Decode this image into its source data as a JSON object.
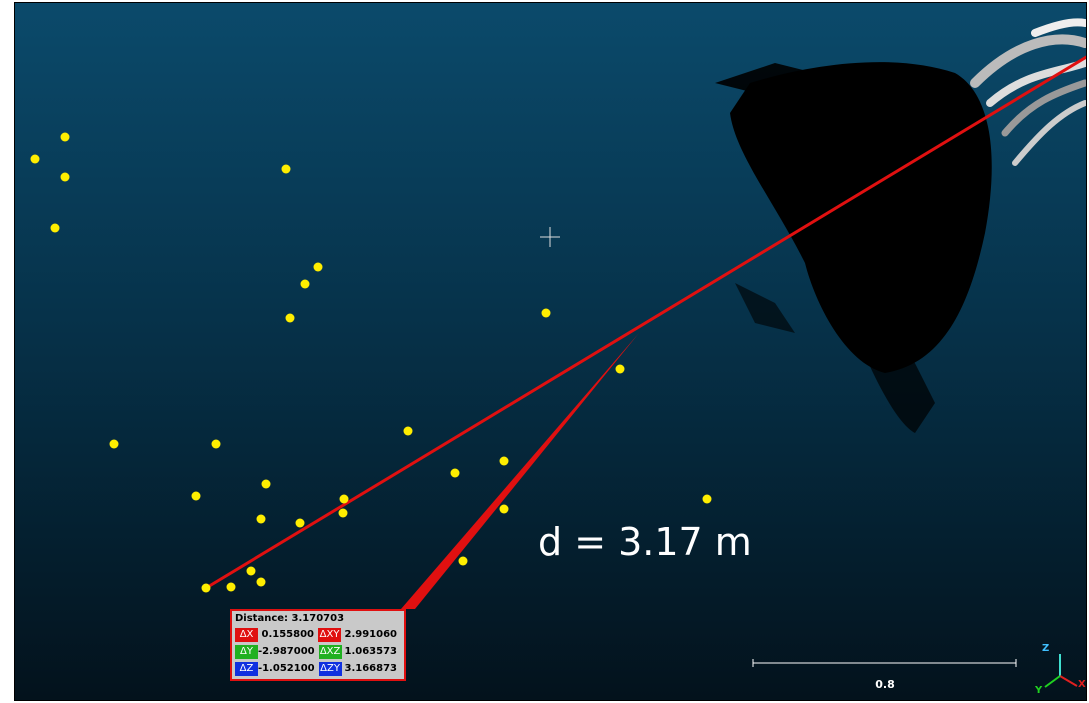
{
  "measurement_label": {
    "title": "Distance: 3.170703",
    "rows": [
      [
        {
          "key": "ΔX",
          "value": "0.155800"
        },
        {
          "key": "ΔXY",
          "value": "2.991060"
        }
      ],
      [
        {
          "key": "ΔY",
          "value": "-2.987000"
        },
        {
          "key": "ΔXZ",
          "value": "1.063573"
        }
      ],
      [
        {
          "key": "ΔZ",
          "value": "-1.052100"
        },
        {
          "key": "ΔZY",
          "value": "3.166873"
        }
      ]
    ]
  },
  "annotation": "d = 3.17 m",
  "scale_bar": "0.8",
  "axes": {
    "z": "Z",
    "y": "Y",
    "x": "X"
  }
}
